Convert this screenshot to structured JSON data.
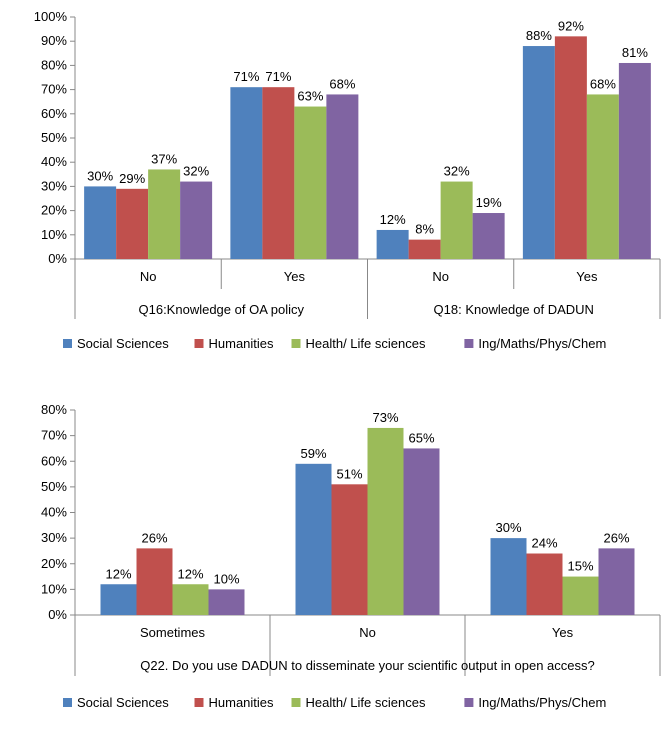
{
  "chart_data": [
    {
      "type": "bar",
      "groups": [
        {
          "label": "Q16:Knowledge of OA policy",
          "categories": [
            "No",
            "Yes"
          ]
        },
        {
          "label": "Q18: Knowledge of DADUN",
          "categories": [
            "No",
            "Yes"
          ]
        }
      ],
      "categories": [
        "No",
        "Yes",
        "No",
        "Yes"
      ],
      "series": [
        {
          "name": "Social Sciences",
          "color": "#4F81BD",
          "values": [
            30,
            71,
            12,
            88
          ]
        },
        {
          "name": "Humanities",
          "color": "#C0504D",
          "values": [
            29,
            71,
            8,
            92
          ]
        },
        {
          "name": "Health/ Life sciences",
          "color": "#9BBB59",
          "values": [
            37,
            63,
            32,
            68
          ]
        },
        {
          "name": "Ing/Maths/Phys/Chem",
          "color": "#8064A2",
          "values": [
            32,
            68,
            19,
            81
          ]
        }
      ],
      "ylim": [
        0,
        100
      ],
      "yticks": [
        "0%",
        "10%",
        "20%",
        "30%",
        "40%",
        "50%",
        "60%",
        "70%",
        "80%",
        "90%",
        "100%"
      ],
      "value_suffix": "%",
      "grid": false,
      "legend": "bottom"
    },
    {
      "type": "bar",
      "categories": [
        "Sometimes",
        "No",
        "Yes"
      ],
      "group_label": "Q22. Do you use DADUN to disseminate your scientific output in open access?",
      "series": [
        {
          "name": "Social Sciences",
          "color": "#4F81BD",
          "values": [
            12,
            59,
            30
          ]
        },
        {
          "name": "Humanities",
          "color": "#C0504D",
          "values": [
            26,
            51,
            24
          ]
        },
        {
          "name": "Health/ Life sciences",
          "color": "#9BBB59",
          "values": [
            12,
            73,
            15
          ]
        },
        {
          "name": "Ing/Maths/Phys/Chem",
          "color": "#8064A2",
          "values": [
            10,
            65,
            26
          ]
        }
      ],
      "ylim": [
        0,
        80
      ],
      "yticks": [
        "0%",
        "10%",
        "20%",
        "30%",
        "40%",
        "50%",
        "60%",
        "70%",
        "80%"
      ],
      "value_suffix": "%",
      "grid": false,
      "legend": "bottom"
    }
  ]
}
